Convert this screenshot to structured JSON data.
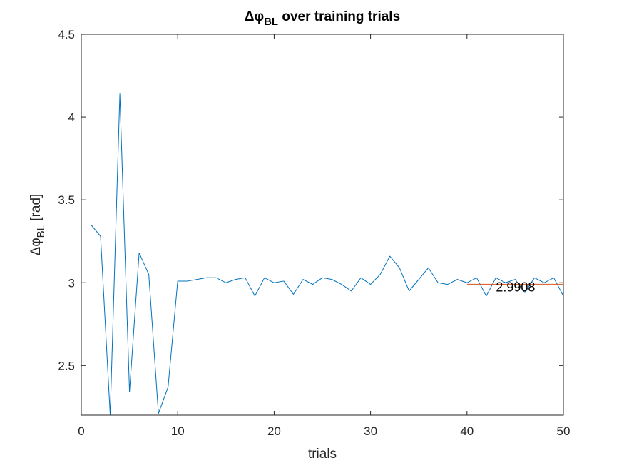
{
  "chart_data": {
    "type": "line",
    "title": {
      "symbol": "Δφ",
      "sub": "BL",
      "rest": " over training trials"
    },
    "xlabel": "trials",
    "ylabel": {
      "symbol": "Δφ",
      "sub": "BL",
      "rest": " [rad]"
    },
    "xlim": [
      0,
      50
    ],
    "ylim": [
      2.2,
      4.5
    ],
    "xticks": [
      0,
      10,
      20,
      30,
      40,
      50
    ],
    "yticks": [
      2.5,
      3,
      3.5,
      4,
      4.5
    ],
    "xtick_labels": [
      "0",
      "10",
      "20",
      "30",
      "40",
      "50"
    ],
    "ytick_labels": [
      "2.5",
      "3",
      "3.5",
      "4",
      "4.5"
    ],
    "grid": false,
    "series": [
      {
        "color": "#0072BD",
        "x": [
          1,
          2,
          3,
          4,
          5,
          6,
          7,
          8,
          9,
          10,
          11,
          12,
          13,
          14,
          15,
          16,
          17,
          18,
          19,
          20,
          21,
          22,
          23,
          24,
          25,
          26,
          27,
          28,
          29,
          30,
          31,
          32,
          33,
          34,
          35,
          36,
          37,
          38,
          39,
          40,
          41,
          42,
          43,
          44,
          45,
          46,
          47,
          48,
          49,
          50
        ],
        "y": [
          3.35,
          3.28,
          2.2,
          4.14,
          2.34,
          3.18,
          3.05,
          2.21,
          2.37,
          3.01,
          3.01,
          3.02,
          3.03,
          3.03,
          3.0,
          3.02,
          3.03,
          2.92,
          3.03,
          3.0,
          3.01,
          2.93,
          3.02,
          2.99,
          3.03,
          3.02,
          2.99,
          2.95,
          3.03,
          2.99,
          3.05,
          3.16,
          3.09,
          2.95,
          3.02,
          3.09,
          3.0,
          2.99,
          3.02,
          3.0,
          3.03,
          2.92,
          3.03,
          3.0,
          3.02,
          2.94,
          3.03,
          3.0,
          3.03,
          2.92
        ]
      },
      {
        "color": "#D95319",
        "x": [
          40,
          50
        ],
        "y": [
          2.9908,
          2.9908
        ]
      }
    ],
    "annotation": {
      "text": "2.9908",
      "x": 43,
      "y": 2.9908
    }
  }
}
